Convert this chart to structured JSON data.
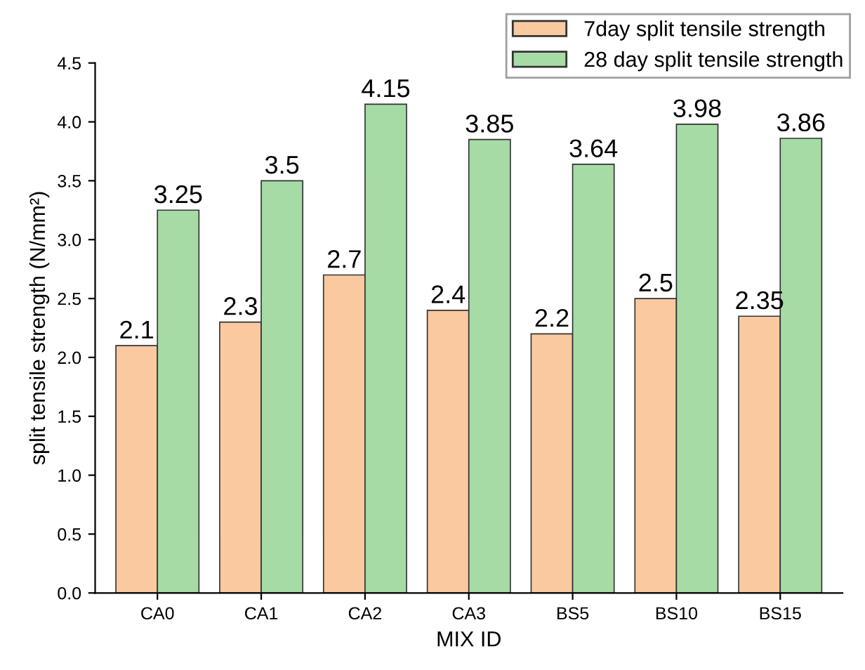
{
  "chart_data": {
    "type": "bar",
    "xlabel": "MIX ID",
    "ylabel": "split tensile strength (N/mm²)",
    "categories": [
      "CA0",
      "CA1",
      "CA2",
      "CA3",
      "BS5",
      "BS10",
      "BS15"
    ],
    "series": [
      {
        "name": "7day split tensile strength",
        "color": "#fac9a0",
        "values": [
          2.1,
          2.3,
          2.7,
          2.4,
          2.2,
          2.5,
          2.35
        ]
      },
      {
        "name": "28 day split tensile strength",
        "color": "#a6dba6",
        "values": [
          3.25,
          3.5,
          4.15,
          3.85,
          3.64,
          3.98,
          3.86
        ]
      }
    ],
    "ylim": [
      0,
      4.5
    ],
    "yticks": [
      {
        "value": 0,
        "label": "0.0"
      },
      {
        "value": 0.5,
        "label": "0.5"
      },
      {
        "value": 1,
        "label": "1.0"
      },
      {
        "value": 1.5,
        "label": "1.5"
      },
      {
        "value": 2,
        "label": "2.0"
      },
      {
        "value": 2.5,
        "label": "2.5"
      },
      {
        "value": 3,
        "label": "3.0"
      },
      {
        "value": 3.5,
        "label": "3.5"
      },
      {
        "value": 4,
        "label": "4.0"
      },
      {
        "value": 4.5,
        "label": "4.5"
      }
    ],
    "data_labels": true,
    "legend": "top right",
    "grid": false
  }
}
